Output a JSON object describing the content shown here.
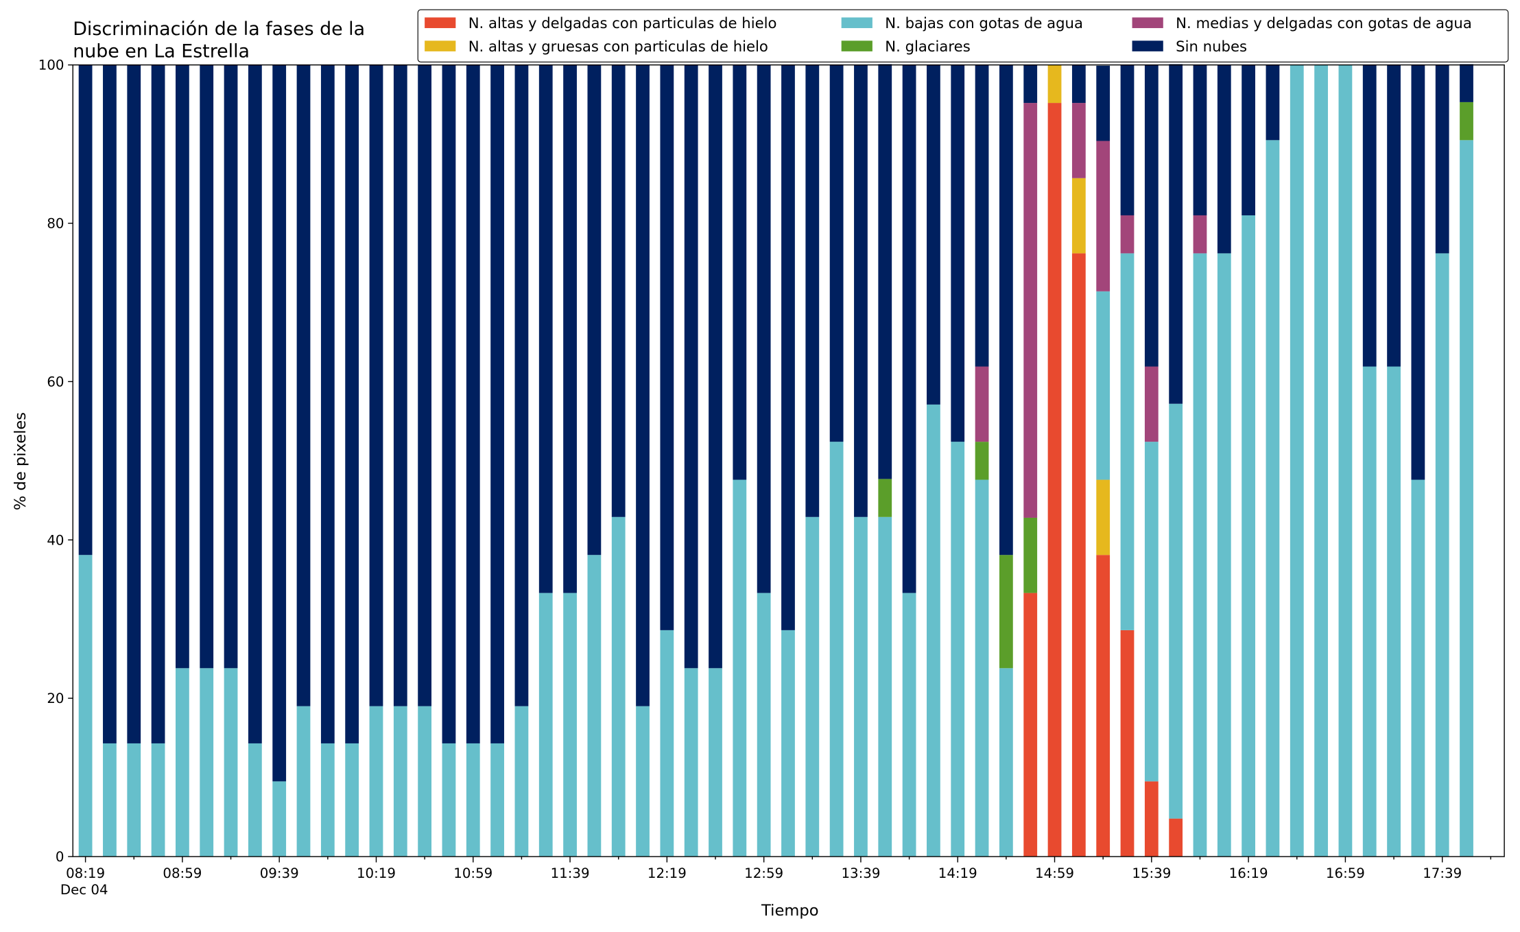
{
  "chart_data": {
    "type": "stacked_bar",
    "title": "Discriminación de la fases de la\nnube en La Estrella",
    "x_label": "Tiempo",
    "y_label": "% de pixeles",
    "date_label": "Dec 04",
    "categories": [
      "08:19",
      null,
      null,
      null,
      "08:59",
      null,
      null,
      null,
      "09:39",
      null,
      null,
      null,
      "10:19",
      null,
      null,
      null,
      "10:59",
      null,
      null,
      null,
      "11:39",
      null,
      null,
      null,
      "12:19",
      null,
      null,
      null,
      "12:59",
      null,
      null,
      null,
      "13:39",
      null,
      null,
      null,
      "14:19",
      null,
      null,
      null,
      "14:59",
      null,
      null,
      null,
      "15:39",
      null,
      null,
      null,
      "16:19",
      null,
      null,
      null,
      "16:59",
      null,
      null,
      null,
      "17:39",
      null
    ],
    "series": [
      {
        "name": "N. altas y delgadas con particulas de hielo",
        "color": "#e84a2f",
        "values": [
          0,
          0,
          0,
          0,
          0,
          0,
          0,
          0,
          0,
          0,
          0,
          0,
          0,
          0,
          0,
          0,
          0,
          0,
          0,
          0,
          0,
          0,
          0,
          0,
          0,
          0,
          0,
          0,
          0,
          0,
          0,
          0,
          0,
          0,
          0,
          0,
          0,
          0,
          0,
          33.3,
          95.2,
          76.2,
          38.1,
          28.6,
          9.5,
          4.8,
          0,
          0,
          0,
          0,
          0,
          0,
          0,
          0,
          0,
          0,
          0,
          0
        ]
      },
      {
        "name": "N. altas y gruesas con particulas de hielo",
        "color": "#e6b81e",
        "values": [
          0,
          0,
          0,
          0,
          0,
          0,
          0,
          0,
          0,
          0,
          0,
          0,
          0,
          0,
          0,
          0,
          0,
          0,
          0,
          0,
          0,
          0,
          0,
          0,
          0,
          0,
          0,
          0,
          0,
          0,
          0,
          0,
          0,
          0,
          0,
          0,
          0,
          0,
          0,
          0,
          4.8,
          9.5,
          9.5,
          0,
          0,
          0,
          0,
          0,
          0,
          0,
          0,
          0,
          0,
          0,
          0,
          0,
          0,
          0
        ]
      },
      {
        "name": "N. bajas con gotas de agua",
        "color": "#66bfcb",
        "values": [
          38.1,
          14.3,
          14.3,
          14.3,
          23.8,
          23.8,
          23.8,
          14.3,
          9.5,
          19.0,
          14.3,
          14.3,
          19.0,
          19.0,
          19.0,
          14.3,
          14.3,
          14.3,
          19.0,
          33.3,
          33.3,
          38.1,
          42.9,
          19.0,
          28.6,
          23.8,
          23.8,
          47.6,
          33.3,
          28.6,
          42.9,
          52.4,
          42.9,
          42.9,
          33.3,
          57.1,
          52.4,
          47.6,
          23.8,
          0,
          0,
          0,
          23.8,
          47.6,
          42.9,
          52.4,
          76.2,
          76.2,
          81.0,
          90.5,
          100,
          100,
          100,
          61.9,
          61.9,
          47.6,
          76.2,
          90.5
        ]
      },
      {
        "name": "N. glaciares",
        "color": "#5b9e2a",
        "values": [
          0,
          0,
          0,
          0,
          0,
          0,
          0,
          0,
          0,
          0,
          0,
          0,
          0,
          0,
          0,
          0,
          0,
          0,
          0,
          0,
          0,
          0,
          0,
          0,
          0,
          0,
          0,
          0,
          0,
          0,
          0,
          0,
          0,
          4.8,
          0,
          0,
          0,
          4.8,
          14.3,
          9.5,
          0,
          0,
          0,
          0,
          0,
          0,
          0,
          0,
          0,
          0,
          0,
          0,
          0,
          0,
          0,
          0,
          0,
          4.8
        ]
      },
      {
        "name": "N. medias y delgadas con gotas de agua",
        "color": "#a2457a",
        "values": [
          0,
          0,
          0,
          0,
          0,
          0,
          0,
          0,
          0,
          0,
          0,
          0,
          0,
          0,
          0,
          0,
          0,
          0,
          0,
          0,
          0,
          0,
          0,
          0,
          0,
          0,
          0,
          0,
          0,
          0,
          0,
          0,
          0,
          0,
          0,
          0,
          0,
          9.5,
          0,
          52.4,
          0,
          9.5,
          19.0,
          4.8,
          9.5,
          0,
          4.8,
          0,
          0,
          0,
          0,
          0,
          0,
          0,
          0,
          0,
          0,
          0
        ]
      },
      {
        "name": "Sin nubes",
        "color": "#00205f",
        "values": [
          61.9,
          85.7,
          85.7,
          85.7,
          76.2,
          76.2,
          76.2,
          85.7,
          90.5,
          81.0,
          85.7,
          85.7,
          81.0,
          81.0,
          81.0,
          85.7,
          85.7,
          85.7,
          81.0,
          66.7,
          66.7,
          61.9,
          57.1,
          81.0,
          71.4,
          76.2,
          76.2,
          52.4,
          66.7,
          71.4,
          57.1,
          47.6,
          57.1,
          52.4,
          66.7,
          42.9,
          47.6,
          38.1,
          61.9,
          4.8,
          0,
          4.8,
          9.5,
          19.0,
          38.1,
          42.9,
          19.0,
          23.8,
          19.0,
          9.5,
          0,
          0,
          0,
          38.1,
          38.1,
          52.4,
          23.8,
          4.8
        ]
      }
    ],
    "ylim": [
      0,
      100
    ],
    "yticks": [
      0,
      20,
      40,
      60,
      80,
      100
    ],
    "legend": "top-right"
  }
}
